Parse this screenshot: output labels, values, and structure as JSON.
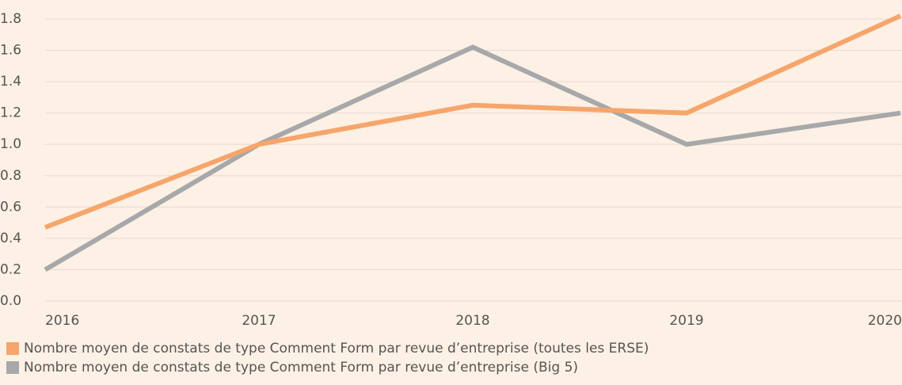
{
  "chart_data": {
    "type": "line",
    "categories": [
      "2016",
      "2017",
      "2018",
      "2019",
      "2020"
    ],
    "series": [
      {
        "name": "Nombre moyen de constats de type Comment Form par revue d’entreprise (toutes les ERSE)",
        "color": "#f6a56b",
        "values": [
          0.47,
          1.0,
          1.25,
          1.2,
          1.82
        ]
      },
      {
        "name": "Nombre moyen de constats de type Comment Form par revue d’entreprise (Big 5)",
        "color": "#a7a8aa",
        "values": [
          0.2,
          1.0,
          1.62,
          1.0,
          1.2
        ]
      }
    ],
    "ylim": [
      0,
      1.8
    ],
    "yticks": [
      {
        "value": 0,
        "label": "0.0"
      },
      0.2,
      0.4,
      0.6,
      0.8,
      {
        "value": 1,
        "label": "1.0"
      },
      1.2,
      1.4,
      1.6,
      1.8
    ],
    "grid": true
  }
}
